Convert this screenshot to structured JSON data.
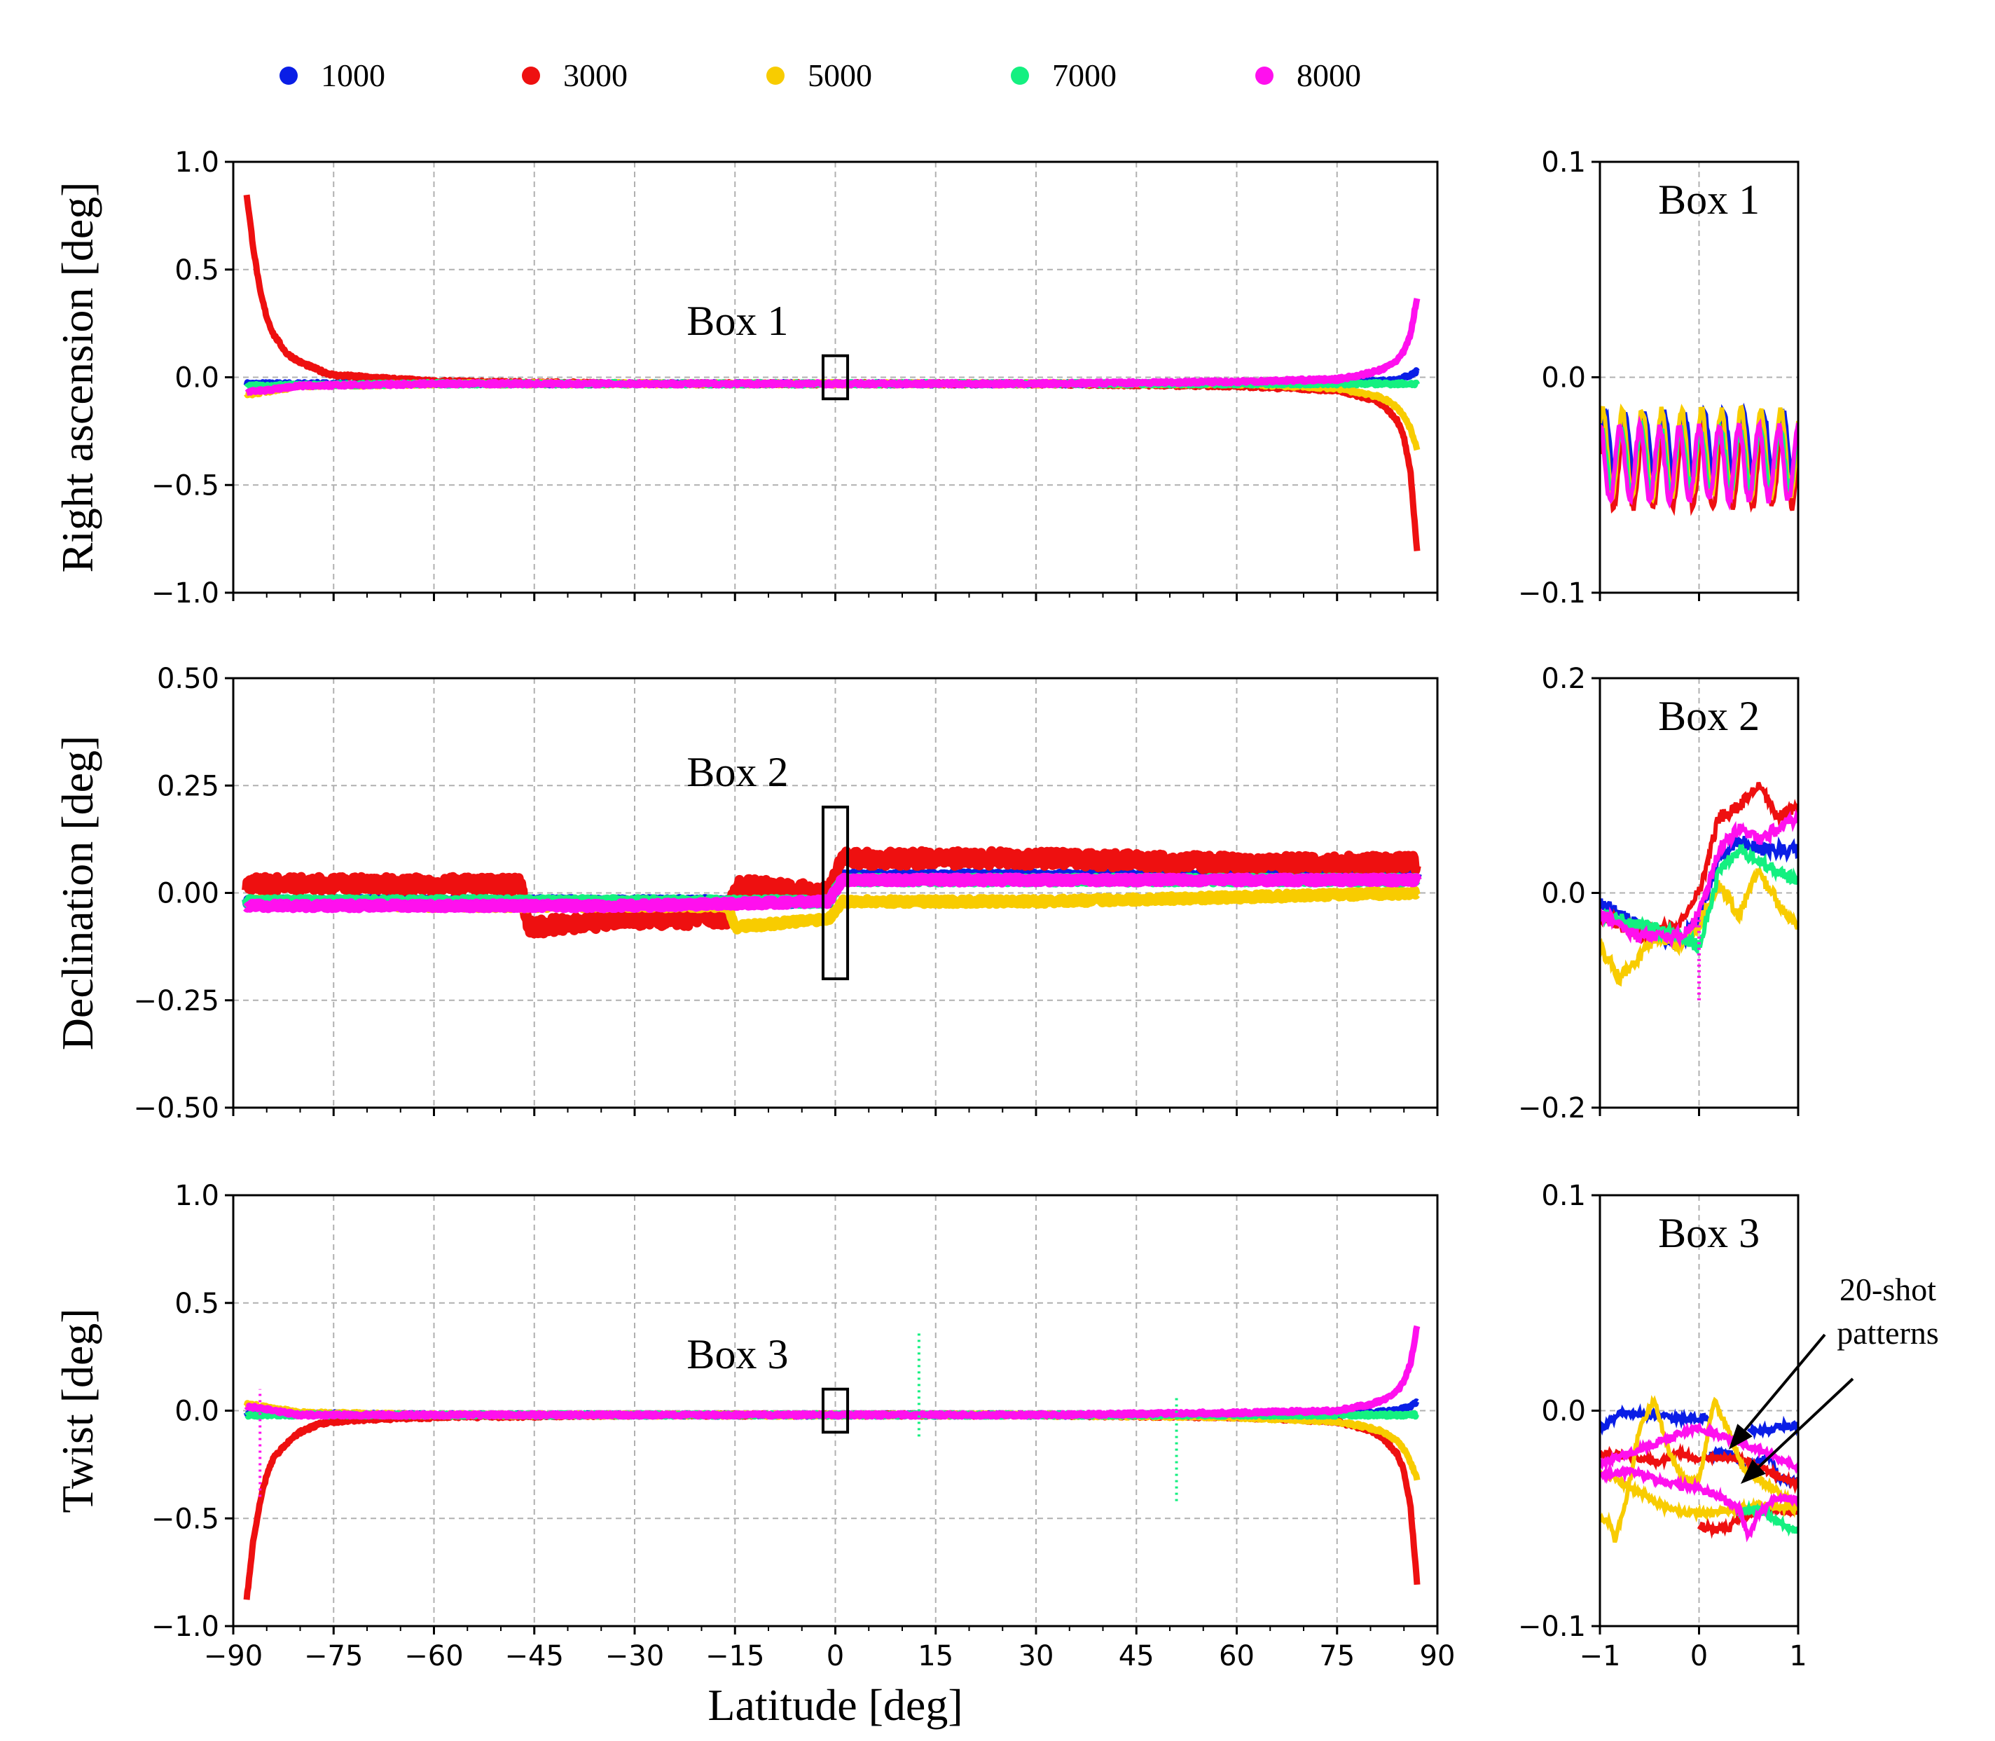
{
  "legend": [
    {
      "name": "legend-1000",
      "label": "1000",
      "color": "#0a1ee6"
    },
    {
      "name": "legend-3000",
      "label": "3000",
      "color": "#ee1010"
    },
    {
      "name": "legend-5000",
      "label": "5000",
      "color": "#f8cc00"
    },
    {
      "name": "legend-7000",
      "label": "7000",
      "color": "#14f080"
    },
    {
      "name": "legend-8000",
      "label": "8000",
      "color": "#ff10ee"
    }
  ],
  "chart_data": [
    {
      "type": "line",
      "panel": "right-ascension-main",
      "ylabel": "Right ascension [deg]",
      "xlabel": "",
      "xlim": [
        -90,
        90
      ],
      "ylim": [
        -1.0,
        1.0
      ],
      "yticks": [
        "1.0",
        "0.5",
        "0.0",
        "−0.5",
        "−1.0"
      ],
      "ytick_values": [
        1.0,
        0.5,
        0.0,
        -0.5,
        -1.0
      ],
      "grid": true,
      "box_label": "Box 1",
      "box_region": {
        "x": [
          -1,
          1
        ],
        "y": [
          -0.1,
          0.1
        ]
      },
      "series": [
        {
          "name": "1000",
          "x": [
            -88,
            -80,
            -60,
            -30,
            0,
            30,
            60,
            80,
            84,
            86,
            87
          ],
          "y": [
            -0.03,
            -0.03,
            -0.03,
            -0.03,
            -0.03,
            -0.03,
            -0.03,
            -0.02,
            -0.01,
            0.01,
            0.03
          ]
        },
        {
          "name": "3000",
          "x": [
            -88,
            -87,
            -86,
            -85,
            -84,
            -82,
            -80,
            -77,
            -75,
            -70,
            -60,
            -30,
            0,
            30,
            60,
            75,
            80,
            82,
            84,
            85,
            86,
            87
          ],
          "y": [
            0.85,
            0.6,
            0.4,
            0.28,
            0.2,
            0.11,
            0.07,
            0.03,
            0.01,
            0.0,
            -0.02,
            -0.03,
            -0.03,
            -0.03,
            -0.04,
            -0.06,
            -0.1,
            -0.13,
            -0.2,
            -0.28,
            -0.45,
            -0.82
          ]
        },
        {
          "name": "5000",
          "x": [
            -88,
            -80,
            -60,
            -30,
            0,
            30,
            60,
            75,
            80,
            82,
            84,
            85,
            86,
            87
          ],
          "y": [
            -0.08,
            -0.04,
            -0.03,
            -0.03,
            -0.03,
            -0.03,
            -0.03,
            -0.05,
            -0.08,
            -0.1,
            -0.14,
            -0.18,
            -0.24,
            -0.34
          ]
        },
        {
          "name": "7000",
          "x": [
            -88,
            -60,
            -30,
            0,
            30,
            60,
            87
          ],
          "y": [
            -0.04,
            -0.03,
            -0.03,
            -0.03,
            -0.03,
            -0.03,
            -0.03
          ]
        },
        {
          "name": "8000",
          "x": [
            -88,
            -80,
            -60,
            -30,
            0,
            30,
            60,
            75,
            80,
            82,
            84,
            85,
            86,
            87
          ],
          "y": [
            -0.07,
            -0.04,
            -0.03,
            -0.03,
            -0.03,
            -0.03,
            -0.02,
            -0.01,
            0.02,
            0.04,
            0.08,
            0.12,
            0.2,
            0.38
          ]
        }
      ]
    },
    {
      "type": "line",
      "panel": "declination-main",
      "ylabel": "Declination [deg]",
      "xlabel": "",
      "xlim": [
        -90,
        90
      ],
      "ylim": [
        -0.5,
        0.5
      ],
      "yticks": [
        "0.50",
        "0.25",
        "0.00",
        "−0.25",
        "−0.50"
      ],
      "ytick_values": [
        0.5,
        0.25,
        0.0,
        -0.25,
        -0.5
      ],
      "grid": true,
      "box_label": "Box 2",
      "box_region": {
        "x": [
          -1,
          1
        ],
        "y": [
          -0.2,
          0.2
        ]
      },
      "series": [
        {
          "name": "1000",
          "x": [
            -88,
            -60,
            -30,
            -1,
            1,
            30,
            60,
            87
          ],
          "y": [
            -0.02,
            -0.02,
            -0.02,
            -0.02,
            0.04,
            0.04,
            0.04,
            0.04
          ]
        },
        {
          "name": "3000",
          "x": [
            -88,
            -60,
            -47,
            -46,
            -30,
            -16,
            -15,
            -1,
            1,
            30,
            60,
            87
          ],
          "y": [
            0.02,
            0.02,
            0.02,
            -0.08,
            -0.06,
            -0.06,
            0.02,
            0.0,
            0.08,
            0.08,
            0.07,
            0.07
          ]
        },
        {
          "name": "5000",
          "x": [
            -88,
            -60,
            -30,
            -16,
            -15,
            -1,
            1,
            30,
            60,
            87
          ],
          "y": [
            -0.02,
            -0.03,
            -0.03,
            -0.03,
            -0.08,
            -0.06,
            -0.02,
            -0.02,
            -0.01,
            0.0
          ]
        },
        {
          "name": "7000",
          "x": [
            -88,
            -60,
            -30,
            -1,
            1,
            30,
            60,
            87
          ],
          "y": [
            -0.02,
            -0.02,
            -0.02,
            -0.02,
            0.03,
            0.03,
            0.03,
            0.03
          ]
        },
        {
          "name": "8000",
          "x": [
            -88,
            -60,
            -30,
            -1,
            1,
            30,
            60,
            87
          ],
          "y": [
            -0.03,
            -0.03,
            -0.03,
            -0.02,
            0.03,
            0.03,
            0.03,
            0.03
          ]
        }
      ]
    },
    {
      "type": "line",
      "panel": "twist-main",
      "ylabel": "Twist [deg]",
      "xlabel": "Latitude [deg]",
      "xlim": [
        -90,
        90
      ],
      "ylim": [
        -1.0,
        1.0
      ],
      "xticks": [
        "−90",
        "−75",
        "−60",
        "−45",
        "−30",
        "−15",
        "0",
        "15",
        "30",
        "45",
        "60",
        "75",
        "90"
      ],
      "xtick_values": [
        -90,
        -75,
        -60,
        -45,
        -30,
        -15,
        0,
        15,
        30,
        45,
        60,
        75,
        90
      ],
      "yticks": [
        "1.0",
        "0.5",
        "0.0",
        "−0.5",
        "−1.0"
      ],
      "ytick_values": [
        1.0,
        0.5,
        0.0,
        -0.5,
        -1.0
      ],
      "grid": true,
      "box_label": "Box 3",
      "box_region": {
        "x": [
          -1,
          1
        ],
        "y": [
          -0.1,
          0.1
        ]
      },
      "series": [
        {
          "name": "1000",
          "x": [
            -88,
            -60,
            -30,
            0,
            30,
            60,
            80,
            84,
            86,
            87
          ],
          "y": [
            -0.01,
            -0.02,
            -0.02,
            -0.02,
            -0.02,
            -0.02,
            -0.01,
            0.0,
            0.02,
            0.04
          ]
        },
        {
          "name": "3000",
          "x": [
            -88,
            -87,
            -86,
            -85,
            -84,
            -82,
            -80,
            -77,
            -75,
            -70,
            -60,
            -30,
            0,
            30,
            60,
            75,
            80,
            82,
            84,
            85,
            86,
            87
          ],
          "y": [
            -0.88,
            -0.6,
            -0.42,
            -0.3,
            -0.22,
            -0.15,
            -0.1,
            -0.06,
            -0.05,
            -0.04,
            -0.03,
            -0.02,
            -0.02,
            -0.02,
            -0.03,
            -0.05,
            -0.09,
            -0.13,
            -0.2,
            -0.28,
            -0.45,
            -0.82
          ]
        },
        {
          "name": "5000",
          "x": [
            -88,
            -80,
            -60,
            -30,
            0,
            30,
            60,
            75,
            80,
            82,
            84,
            85,
            86,
            87
          ],
          "y": [
            0.03,
            -0.01,
            -0.02,
            -0.02,
            -0.02,
            -0.02,
            -0.03,
            -0.05,
            -0.08,
            -0.1,
            -0.14,
            -0.18,
            -0.24,
            -0.32
          ]
        },
        {
          "name": "7000",
          "x": [
            -88,
            -60,
            -30,
            0,
            30,
            60,
            87
          ],
          "y": [
            -0.02,
            -0.02,
            -0.02,
            -0.02,
            -0.02,
            -0.02,
            -0.02
          ]
        },
        {
          "name": "8000",
          "x": [
            -88,
            -80,
            -60,
            -30,
            0,
            30,
            60,
            75,
            80,
            82,
            84,
            85,
            86,
            87
          ],
          "y": [
            0.02,
            -0.02,
            -0.02,
            -0.02,
            -0.02,
            -0.02,
            -0.01,
            0.0,
            0.03,
            0.05,
            0.09,
            0.14,
            0.22,
            0.4
          ]
        }
      ],
      "spikes": [
        {
          "name": "8000",
          "x": -86,
          "y": [
            -0.4,
            0.1
          ]
        },
        {
          "name": "7000",
          "x": 12.5,
          "y": [
            -0.12,
            0.36
          ]
        },
        {
          "name": "7000",
          "x": 51,
          "y": [
            -0.42,
            0.07
          ]
        }
      ]
    },
    {
      "type": "line",
      "panel": "box-1-zoom",
      "title": "Box 1",
      "xlim": [
        -1,
        1
      ],
      "ylim": [
        -0.1,
        0.1
      ],
      "yticks": [
        "0.1",
        "0.0",
        "−0.1"
      ],
      "ytick_values": [
        0.1,
        0.0,
        -0.1
      ],
      "grid": true,
      "series": [
        {
          "name": "1000",
          "center": -0.032,
          "amplitude": 0.016,
          "period": 0.2
        },
        {
          "name": "3000",
          "center": -0.042,
          "amplitude": 0.018,
          "period": 0.2
        },
        {
          "name": "5000",
          "center": -0.035,
          "amplitude": 0.02,
          "period": 0.2
        },
        {
          "name": "7000",
          "center": -0.038,
          "amplitude": 0.014,
          "period": 0.2
        },
        {
          "name": "8000",
          "center": -0.04,
          "amplitude": 0.017,
          "period": 0.2
        }
      ]
    },
    {
      "type": "line",
      "panel": "box-2-zoom",
      "title": "Box 2",
      "xlim": [
        -1,
        1
      ],
      "ylim": [
        -0.2,
        0.2
      ],
      "yticks": [
        "0.2",
        "0.0",
        "−0.2"
      ],
      "ytick_values": [
        0.2,
        0.0,
        -0.2
      ],
      "grid": true,
      "series": [
        {
          "name": "1000",
          "x": [
            -1,
            -0.6,
            -0.2,
            0,
            0.2,
            0.4,
            0.6,
            1
          ],
          "y": [
            -0.01,
            -0.03,
            -0.05,
            -0.02,
            0.03,
            0.05,
            0.04,
            0.04
          ]
        },
        {
          "name": "3000",
          "x": [
            -1,
            -0.6,
            -0.2,
            0,
            0.2,
            0.4,
            0.6,
            0.8,
            1
          ],
          "y": [
            -0.02,
            -0.04,
            -0.03,
            0.0,
            0.07,
            0.08,
            0.1,
            0.07,
            0.08
          ]
        },
        {
          "name": "5000",
          "x": [
            -1,
            -0.8,
            -0.6,
            -0.4,
            -0.2,
            0,
            0.2,
            0.4,
            0.6,
            0.8,
            1
          ],
          "y": [
            -0.05,
            -0.08,
            -0.06,
            -0.04,
            -0.05,
            -0.03,
            0.01,
            -0.02,
            0.02,
            -0.01,
            -0.03
          ]
        },
        {
          "name": "7000",
          "x": [
            -1,
            -0.6,
            -0.2,
            0,
            0.2,
            0.4,
            0.6,
            1
          ],
          "y": [
            -0.02,
            -0.03,
            -0.04,
            -0.05,
            0.02,
            0.04,
            0.03,
            0.01
          ]
        },
        {
          "name": "8000",
          "x": [
            -1,
            -0.6,
            -0.2,
            0,
            0.2,
            0.4,
            0.6,
            1
          ],
          "y": [
            -0.02,
            -0.04,
            -0.04,
            -0.02,
            0.04,
            0.06,
            0.05,
            0.07
          ]
        }
      ],
      "spike": {
        "name": "8000",
        "x": 0,
        "y": [
          -0.1,
          -0.02
        ]
      }
    },
    {
      "type": "line",
      "panel": "box-3-zoom",
      "title": "Box 3",
      "xlim": [
        -1,
        1
      ],
      "ylim": [
        -0.1,
        0.1
      ],
      "xticks": [
        "−1",
        "0",
        "1"
      ],
      "xtick_values": [
        -1,
        0,
        1
      ],
      "yticks": [
        "0.1",
        "0.0",
        "−0.1"
      ],
      "ytick_values": [
        0.1,
        0.0,
        -0.1
      ],
      "grid": true,
      "series": [
        {
          "name": "1000",
          "x": [
            -1,
            -0.8,
            -0.4,
            -0.2,
            0.0,
            0.1
          ],
          "y": [
            -0.009,
            -0.001,
            -0.002,
            -0.004,
            -0.004,
            -0.003
          ]
        },
        {
          "name": "1000",
          "x": [
            0.1,
            0.3,
            0.5,
            0.7,
            0.8,
            1.0
          ],
          "y": [
            -0.02,
            -0.019,
            -0.027,
            -0.02,
            -0.031,
            -0.033
          ]
        },
        {
          "name": "1000",
          "x": [
            0.5,
            0.7,
            0.8,
            1.0
          ],
          "y": [
            -0.009,
            -0.009,
            -0.007,
            -0.007
          ]
        },
        {
          "name": "3000",
          "x": [
            -1,
            -0.7,
            -0.4,
            -0.2,
            0,
            0.2,
            0.4,
            0.6,
            0.8,
            1
          ],
          "y": [
            -0.02,
            -0.021,
            -0.024,
            -0.02,
            -0.022,
            -0.022,
            -0.022,
            -0.026,
            -0.03,
            -0.035
          ]
        },
        {
          "name": "3000",
          "x": [
            0,
            0.3,
            0.4,
            0.8,
            1.0
          ],
          "y": [
            -0.054,
            -0.055,
            -0.049,
            -0.046,
            -0.047
          ]
        },
        {
          "name": "5000",
          "x": [
            -1,
            -0.9,
            -0.85,
            -0.75,
            -0.6,
            -0.45,
            -0.3,
            -0.15,
            0,
            0.15,
            0.3,
            0.45,
            0.6,
            0.75,
            0.9,
            1
          ],
          "y": [
            -0.05,
            -0.052,
            -0.06,
            -0.045,
            -0.008,
            0.005,
            -0.02,
            -0.032,
            -0.033,
            0.005,
            -0.01,
            -0.028,
            -0.032,
            -0.036,
            -0.042,
            -0.045
          ]
        },
        {
          "name": "5000",
          "x": [
            -1,
            -0.6,
            -0.3,
            0,
            0.3,
            0.6,
            1
          ],
          "y": [
            -0.028,
            -0.038,
            -0.046,
            -0.048,
            -0.046,
            -0.044,
            -0.045
          ]
        },
        {
          "name": "7000",
          "x": [
            0.4,
            0.6,
            0.8,
            1.0
          ],
          "y": [
            -0.048,
            -0.045,
            -0.052,
            -0.056
          ]
        },
        {
          "name": "8000",
          "x": [
            -1,
            -0.6,
            -0.2,
            0,
            0.3,
            0.6,
            0.8,
            1
          ],
          "y": [
            -0.025,
            -0.018,
            -0.011,
            -0.008,
            -0.013,
            -0.018,
            -0.022,
            -0.026
          ]
        },
        {
          "name": "8000",
          "x": [
            -1,
            -0.7,
            -0.5,
            -0.3,
            0,
            0.2,
            0.4,
            0.5,
            0.6,
            0.8,
            1
          ],
          "y": [
            -0.03,
            -0.028,
            -0.031,
            -0.034,
            -0.036,
            -0.04,
            -0.045,
            -0.058,
            -0.048,
            -0.04,
            -0.042
          ]
        }
      ],
      "annotation": {
        "line1": "20-shot",
        "line2": "patterns",
        "targets": [
          {
            "x": 0.3,
            "y": -0.018
          },
          {
            "x": 0.42,
            "y": -0.034
          }
        ]
      }
    }
  ]
}
